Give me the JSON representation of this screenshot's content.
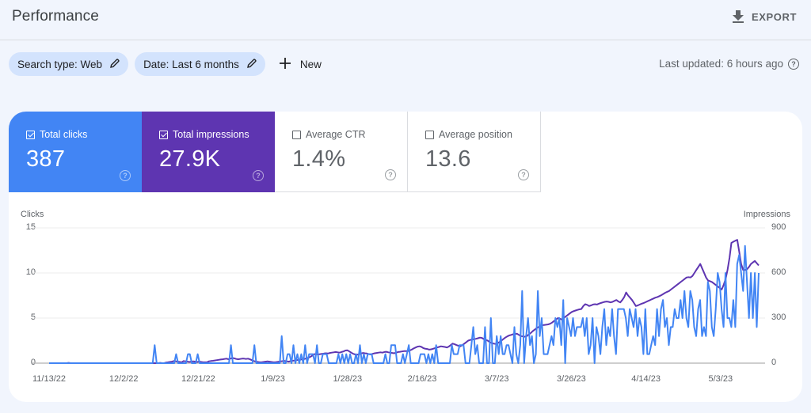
{
  "header": {
    "title": "Performance",
    "export_label": "EXPORT",
    "export_icon": "download-icon"
  },
  "filters": {
    "chips": [
      {
        "label": "Search type: Web",
        "icon": "edit-pencil-icon"
      },
      {
        "label": "Date: Last 6 months",
        "icon": "edit-pencil-icon"
      }
    ],
    "new_label": "New",
    "new_icon": "plus-icon"
  },
  "last_updated": {
    "text": "Last updated: 6 hours ago",
    "icon": "help-icon"
  },
  "metrics": [
    {
      "label": "Total clicks",
      "value": "387",
      "checked": true,
      "color": "#4285f4"
    },
    {
      "label": "Total impressions",
      "value": "27.9K",
      "checked": true,
      "color": "#5e35b1"
    },
    {
      "label": "Average CTR",
      "value": "1.4%",
      "checked": false,
      "color": "#ffffff"
    },
    {
      "label": "Average position",
      "value": "13.6",
      "checked": false,
      "color": "#ffffff"
    }
  ],
  "help_glyph": "?",
  "chart_data": {
    "type": "line",
    "title": "",
    "xlabel": "",
    "left_axis": {
      "label": "Clicks",
      "ticks": [
        "15",
        "10",
        "5",
        "0"
      ],
      "range": [
        0,
        15
      ]
    },
    "right_axis": {
      "label": "Impressions",
      "ticks": [
        "900",
        "600",
        "300",
        "0"
      ],
      "range": [
        0,
        900
      ]
    },
    "x_ticks": [
      "11/13/22",
      "12/2/22",
      "12/21/22",
      "1/9/23",
      "1/28/23",
      "2/16/23",
      "3/7/23",
      "3/26/23",
      "4/14/23",
      "5/3/23"
    ],
    "x_tick_interval_days": 19,
    "grid": true,
    "legend": "metric cards above chart",
    "series": [
      {
        "name": "Clicks",
        "axis": "left",
        "color": "#4285f4",
        "values": [
          0,
          0,
          0,
          0,
          0,
          0,
          0,
          0,
          0,
          0,
          0,
          0,
          0,
          0,
          0,
          0,
          0,
          0,
          0,
          0,
          0,
          0,
          0,
          0,
          0,
          0,
          0,
          0,
          0,
          0,
          0,
          0,
          0,
          0,
          0,
          0,
          0,
          0,
          0,
          0,
          0,
          0,
          0,
          0,
          0,
          0,
          0,
          0,
          0,
          0,
          0,
          0,
          0,
          0,
          2,
          0,
          0,
          0,
          0,
          0,
          0,
          0,
          0,
          0,
          0,
          1,
          0,
          0,
          0,
          0,
          0,
          1,
          1,
          0,
          0,
          0,
          1,
          0,
          0,
          0,
          0,
          0,
          0,
          0,
          0,
          0,
          0,
          0,
          0,
          0,
          0,
          0,
          0,
          2,
          0,
          0,
          0,
          0,
          0,
          0,
          0,
          0,
          0,
          0,
          0,
          2,
          0,
          0,
          0,
          0,
          0,
          0,
          0,
          0,
          0,
          0,
          0,
          0,
          0,
          3,
          0,
          0,
          1,
          1,
          0,
          2,
          0,
          1,
          0,
          1,
          0,
          2,
          0,
          1,
          1,
          1,
          0,
          2,
          0,
          0,
          1,
          1,
          1,
          0,
          0,
          0,
          0,
          0,
          1,
          0,
          1,
          0,
          1,
          0,
          1,
          0,
          0,
          1,
          0,
          2,
          0,
          1,
          0,
          1,
          1,
          1,
          0,
          0,
          0,
          0,
          0,
          0,
          1,
          0,
          0,
          2,
          2,
          2,
          0,
          0,
          0,
          1,
          0,
          1,
          2,
          0,
          0,
          0,
          0,
          0,
          1,
          1,
          1,
          0,
          1,
          0,
          1,
          0,
          2,
          0,
          0,
          0,
          0,
          0,
          0,
          0,
          2,
          1,
          1,
          1,
          2,
          2,
          2,
          0,
          0,
          0,
          2,
          4,
          1,
          2,
          0,
          0,
          0,
          4,
          0,
          0,
          5,
          0,
          0,
          3,
          1,
          3,
          1,
          1,
          2,
          2,
          1,
          0,
          4,
          1,
          0,
          2,
          8,
          0,
          3,
          5,
          2,
          3,
          0,
          1,
          8,
          3,
          5,
          1,
          1,
          1,
          2,
          3,
          2,
          5,
          4,
          5,
          2,
          7,
          0,
          5,
          4,
          3,
          5,
          3,
          4,
          4,
          4,
          5,
          3,
          5,
          1,
          2,
          5,
          0,
          4,
          3,
          1,
          4,
          6,
          2,
          4,
          3,
          6,
          3,
          1,
          6,
          6,
          6,
          6,
          5,
          3,
          6,
          5,
          4,
          6,
          3,
          5,
          4,
          1,
          6,
          1,
          1,
          2,
          3,
          2,
          6,
          3,
          6,
          7,
          4,
          5,
          2,
          4,
          4,
          6,
          5,
          5,
          7,
          5,
          8,
          5,
          4,
          8,
          7,
          4,
          3,
          6,
          7,
          3,
          4,
          3,
          9,
          8,
          4,
          3,
          6,
          10,
          9,
          6,
          4,
          10,
          5,
          5,
          4,
          7,
          4,
          11,
          12,
          10,
          8,
          13,
          9,
          5,
          10,
          5,
          10,
          4,
          10
        ],
        "values_note": "approximate daily values read from chart; rendered by resampling to plot width"
      },
      {
        "name": "Impressions",
        "axis": "right",
        "color": "#5e35b1",
        "values": [
          0,
          0,
          0,
          0,
          0,
          0,
          0,
          0,
          0,
          0,
          2,
          0,
          0,
          0,
          0,
          0,
          0,
          0,
          0,
          0,
          0,
          0,
          0,
          0,
          0,
          0,
          0,
          0,
          0,
          0,
          0,
          0,
          0,
          0,
          0,
          0,
          0,
          0,
          0,
          0,
          0,
          0,
          0,
          0,
          0,
          0,
          0,
          0,
          0,
          0,
          0,
          0,
          0,
          0,
          0,
          0,
          0,
          2,
          0,
          0,
          4,
          6,
          8,
          10,
          14,
          12,
          10,
          8,
          6,
          14,
          12,
          10,
          8,
          10,
          12,
          10,
          8,
          10,
          8,
          6,
          6,
          6,
          12,
          14,
          16,
          18,
          20,
          22,
          24,
          26,
          28,
          30,
          26,
          30,
          34,
          32,
          28,
          26,
          28,
          30,
          30,
          28,
          30,
          26,
          20,
          14,
          10,
          8,
          6,
          6,
          8,
          10,
          12,
          10,
          8,
          6,
          6,
          8,
          10,
          12,
          14,
          14,
          12,
          10,
          14,
          16,
          18,
          20,
          22,
          24,
          26,
          28,
          32,
          36,
          42,
          50,
          60,
          60,
          58,
          60,
          62,
          64,
          66,
          64,
          68,
          70,
          72,
          74,
          72,
          70,
          74,
          78,
          84,
          86,
          78,
          70,
          62,
          58,
          56,
          60,
          64,
          68,
          66,
          64,
          60,
          58,
          62,
          66,
          68,
          70,
          72,
          70,
          74,
          76,
          72,
          70,
          68,
          66,
          70,
          74,
          76,
          78,
          80,
          80,
          80,
          84,
          90,
          98,
          104,
          110,
          112,
          108,
          100,
          96,
          94,
          90,
          92,
          96,
          100,
          104,
          108,
          112,
          110,
          108,
          104,
          110,
          120,
          130,
          126,
          120,
          116,
          112,
          120,
          130,
          140,
          150,
          154,
          158,
          160,
          162,
          166,
          170,
          168,
          160,
          154,
          150,
          140,
          134,
          130,
          128,
          132,
          140,
          150,
          160,
          170,
          178,
          184,
          188,
          192,
          194,
          196,
          188,
          180,
          178,
          176,
          180,
          190,
          200,
          212,
          222,
          232,
          240,
          246,
          252,
          254,
          256,
          258,
          262,
          270,
          280,
          290,
          300,
          296,
          290,
          300,
          310,
          320,
          330,
          340,
          346,
          350,
          354,
          358,
          360,
          380,
          392,
          388,
          380,
          384,
          390,
          392,
          390,
          396,
          400,
          404,
          408,
          410,
          408,
          404,
          408,
          414,
          420,
          410,
          404,
          420,
          440,
          470,
          450,
          436,
          420,
          400,
          380,
          384,
          390,
          396,
          400,
          406,
          412,
          418,
          424,
          430,
          436,
          440,
          446,
          452,
          460,
          468,
          474,
          480,
          490,
          500,
          510,
          520,
          530,
          540,
          550,
          560,
          570,
          572,
          570,
          580,
          600,
          620,
          640,
          660,
          630,
          600,
          570,
          550,
          545,
          540,
          530,
          520,
          510,
          500,
          490,
          520,
          560,
          620,
          700,
          800,
          808,
          815,
          820,
          740,
          660,
          620,
          620,
          625,
          640,
          660,
          670,
          680,
          665,
          650
        ]
      }
    ]
  }
}
